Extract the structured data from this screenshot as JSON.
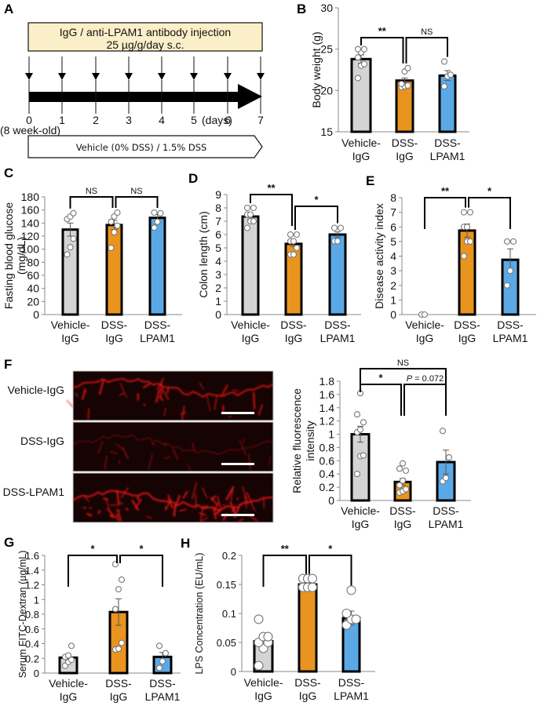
{
  "colors": {
    "vehicle": "#d4d4d4",
    "dss_igg": "#e8941f",
    "dss_lpam1": "#5aa9e6",
    "timeline_box": "#faefc8",
    "fluorescence": "#e01818"
  },
  "panel_a": {
    "label": "A",
    "injection_line1": "IgG / anti-LPAM1 antibody injection",
    "injection_line2": "25 µg/g/day s.c.",
    "days": [
      "0",
      "1",
      "2",
      "3",
      "4",
      "5",
      "6",
      "7"
    ],
    "days_unit": "(days)",
    "day0_note": "(8 week-old)",
    "treatment": "Vehicle (0% DSS) / 1.5% DSS"
  },
  "panel_f_images": {
    "label": "F",
    "rows": [
      "Vehicle-IgG",
      "DSS-IgG",
      "DSS-LPAM1"
    ]
  },
  "categories": [
    {
      "line1": "Vehicle-",
      "line2": "IgG"
    },
    {
      "line1": "DSS-",
      "line2": "IgG"
    },
    {
      "line1": "DSS-",
      "line2": "LPAM1"
    }
  ],
  "chart_data": [
    {
      "panel": "B",
      "type": "bar",
      "categories": [
        "Vehicle-IgG",
        "DSS-IgG",
        "DSS-LPAM1"
      ],
      "values": [
        23.8,
        21.2,
        21.8
      ],
      "errors": [
        0.5,
        0.3,
        0.6
      ],
      "points": [
        [
          21.5,
          23.0,
          23.2,
          24.0,
          24.6,
          25.0,
          25.0
        ],
        [
          20.4,
          20.5,
          20.6,
          20.8,
          22.3,
          22.7
        ],
        [
          20.5,
          21.7,
          21.9,
          23.5
        ]
      ],
      "ylabel": "Body weight (g)",
      "ylim": [
        15,
        30
      ],
      "yticks": [
        15,
        20,
        25,
        30
      ],
      "significance": [
        {
          "pair": [
            0,
            1
          ],
          "label": "**"
        },
        {
          "pair": [
            1,
            2
          ],
          "label": "NS"
        }
      ]
    },
    {
      "panel": "C",
      "type": "bar",
      "categories": [
        "Vehicle-IgG",
        "DSS-IgG",
        "DSS-LPAM1"
      ],
      "values": [
        130,
        137,
        148
      ],
      "errors": [
        10,
        7,
        5
      ],
      "points": [
        [
          92,
          103,
          116,
          146,
          150,
          155
        ],
        [
          102,
          126,
          136,
          142,
          150,
          156
        ],
        [
          133,
          142,
          155,
          156
        ]
      ],
      "ylabel": "Fasting blood glucose (mg/dL)",
      "ylim": [
        0,
        180
      ],
      "yticks": [
        0,
        20,
        40,
        60,
        80,
        100,
        120,
        140,
        160,
        180
      ],
      "significance": [
        {
          "pair": [
            0,
            1
          ],
          "label": "NS"
        },
        {
          "pair": [
            1,
            2
          ],
          "label": "NS"
        }
      ]
    },
    {
      "panel": "D",
      "type": "bar",
      "categories": [
        "Vehicle-IgG",
        "DSS-IgG",
        "DSS-LPAM1"
      ],
      "values": [
        7.35,
        5.3,
        6.0
      ],
      "errors": [
        0.2,
        0.2,
        0.2
      ],
      "points": [
        [
          6.5,
          7.0,
          7.0,
          7.5,
          7.5,
          8.0,
          8.0
        ],
        [
          4.5,
          4.5,
          5.0,
          5.5,
          5.5,
          6.0,
          6.0
        ],
        [
          5.5,
          5.5,
          6.5,
          6.5
        ]
      ],
      "ylabel": "Colon length (cm)",
      "ylim": [
        0,
        9
      ],
      "yticks": [
        0,
        1,
        2,
        3,
        4,
        5,
        6,
        7,
        8,
        9
      ],
      "significance": [
        {
          "pair": [
            0,
            1
          ],
          "label": "**"
        },
        {
          "pair": [
            1,
            2
          ],
          "label": "*"
        }
      ]
    },
    {
      "panel": "E",
      "type": "bar",
      "categories": [
        "Vehicle-IgG",
        "DSS-IgG",
        "DSS-LPAM1"
      ],
      "values": [
        0,
        5.75,
        3.75
      ],
      "errors": [
        0,
        0.45,
        0.75
      ],
      "points": [
        [
          0,
          0
        ],
        [
          4,
          5,
          5,
          6,
          6,
          7,
          7
        ],
        [
          2,
          3,
          5,
          5
        ]
      ],
      "ylabel": "Disease activity index",
      "ylim": [
        0,
        8
      ],
      "yticks": [
        0,
        1,
        2,
        3,
        4,
        5,
        6,
        7,
        8
      ],
      "significance": [
        {
          "pair": [
            0,
            1
          ],
          "label": "**"
        },
        {
          "pair": [
            1,
            2
          ],
          "label": "*"
        }
      ]
    },
    {
      "panel": "F",
      "type": "bar",
      "categories": [
        "Vehicle-IgG",
        "DSS-IgG",
        "DSS-LPAM1"
      ],
      "values": [
        1.0,
        0.28,
        0.58
      ],
      "errors": [
        0.12,
        0.05,
        0.18
      ],
      "points": [
        [
          0.4,
          0.67,
          0.68,
          1.03,
          1.07,
          1.18,
          1.3,
          1.62
        ],
        [
          0.12,
          0.14,
          0.17,
          0.23,
          0.3,
          0.45,
          0.48,
          0.56
        ],
        [
          0.29,
          0.34,
          0.65,
          1.05
        ]
      ],
      "ylabel": "Relative fluorescence intensity",
      "ylim": [
        0,
        1.8
      ],
      "yticks": [
        0,
        0.2,
        0.4,
        0.6,
        0.8,
        1,
        1.2,
        1.4,
        1.6,
        1.8
      ],
      "significance": [
        {
          "pair": [
            0,
            2
          ],
          "label": "NS"
        },
        {
          "pair": [
            0,
            1
          ],
          "label": "*"
        },
        {
          "pair": [
            1,
            2
          ],
          "label": "P = 0.072"
        }
      ]
    },
    {
      "panel": "G",
      "type": "bar",
      "categories": [
        "Vehicle-IgG",
        "DSS-IgG",
        "DSS-LPAM1"
      ],
      "values": [
        0.21,
        0.83,
        0.22
      ],
      "errors": [
        0.04,
        0.18,
        0.06
      ],
      "points": [
        [
          0.1,
          0.15,
          0.18,
          0.22,
          0.24,
          0.37
        ],
        [
          0.32,
          0.33,
          0.41,
          0.87,
          1.14,
          1.27,
          1.48
        ],
        [
          0.07,
          0.16,
          0.27,
          0.37
        ]
      ],
      "ylabel": "Serum FITC-Dextran (µg/mL)",
      "ylim": [
        0,
        1.6
      ],
      "yticks": [
        0,
        0.2,
        0.4,
        0.6,
        0.8,
        1,
        1.2,
        1.4,
        1.6
      ],
      "significance": [
        {
          "pair": [
            0,
            1
          ],
          "label": "*"
        },
        {
          "pair": [
            1,
            2
          ],
          "label": "*"
        }
      ]
    },
    {
      "panel": "H",
      "type": "bar",
      "categories": [
        "Vehicle-IgG",
        "DSS-IgG",
        "DSS-LPAM1"
      ],
      "values": [
        0.052,
        0.15,
        0.092
      ],
      "errors": [
        0.008,
        0.002,
        0.012
      ],
      "points": [
        [
          0.01,
          0.04,
          0.05,
          0.05,
          0.06,
          0.06,
          0.09
        ],
        [
          0.145,
          0.145,
          0.145,
          0.16,
          0.16,
          0.16
        ],
        [
          0.08,
          0.09,
          0.09,
          0.1,
          0.14
        ]
      ],
      "ylabel": "LPS Concentration (EU/mL)",
      "ylim": [
        0,
        0.2
      ],
      "yticks": [
        0,
        0.05,
        0.1,
        0.15,
        0.2
      ],
      "significance": [
        {
          "pair": [
            0,
            1
          ],
          "label": "**"
        },
        {
          "pair": [
            1,
            2
          ],
          "label": "*"
        }
      ]
    }
  ]
}
